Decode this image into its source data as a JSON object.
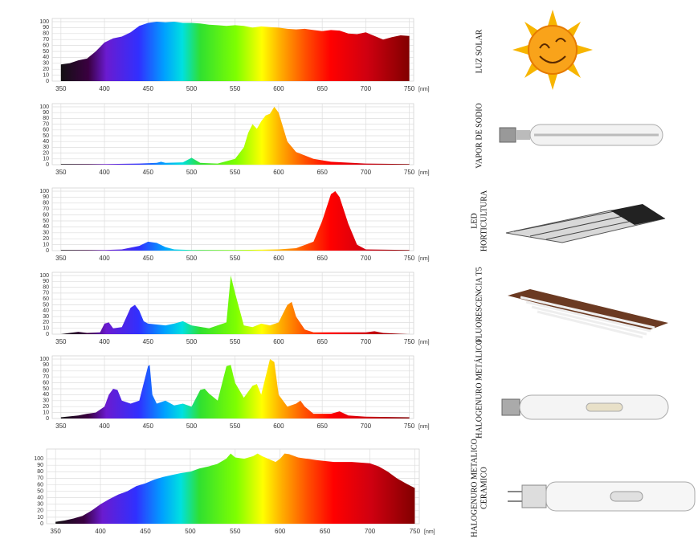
{
  "chart_data": [
    {
      "type": "area",
      "label": [
        "LUZ SOLAR"
      ],
      "x_label": "[nm]",
      "x": [
        350,
        360,
        370,
        380,
        390,
        400,
        410,
        420,
        430,
        440,
        450,
        460,
        470,
        480,
        490,
        500,
        510,
        520,
        530,
        540,
        550,
        560,
        570,
        580,
        590,
        600,
        610,
        620,
        630,
        640,
        650,
        660,
        670,
        680,
        690,
        700,
        710,
        720,
        730,
        740,
        750
      ],
      "values": [
        28,
        30,
        35,
        38,
        50,
        65,
        72,
        75,
        82,
        93,
        98,
        100,
        99,
        100,
        98,
        98,
        97,
        95,
        94,
        93,
        94,
        93,
        90,
        92,
        91,
        90,
        88,
        87,
        88,
        86,
        84,
        86,
        85,
        80,
        79,
        82,
        76,
        70,
        74,
        77,
        76
      ],
      "xlim": [
        340,
        755
      ],
      "xticks": [
        350,
        400,
        450,
        500,
        550,
        600,
        650,
        700,
        750
      ],
      "ylim": [
        0,
        100
      ],
      "yticks": [
        0,
        10,
        20,
        30,
        40,
        50,
        60,
        70,
        80,
        90,
        100
      ],
      "grid": true
    },
    {
      "type": "area",
      "label": [
        "VAPOR DE SODIO"
      ],
      "x_label": "[nm]",
      "x": [
        350,
        400,
        440,
        460,
        465,
        470,
        490,
        500,
        510,
        530,
        550,
        560,
        565,
        570,
        575,
        580,
        585,
        590,
        595,
        600,
        610,
        620,
        640,
        660,
        700,
        750
      ],
      "values": [
        1,
        1,
        2,
        3,
        5,
        3,
        4,
        12,
        3,
        2,
        10,
        30,
        55,
        70,
        62,
        75,
        85,
        88,
        100,
        90,
        40,
        22,
        10,
        5,
        2,
        1
      ],
      "xlim": [
        340,
        755
      ],
      "xticks": [
        350,
        400,
        450,
        500,
        550,
        600,
        650,
        700,
        750
      ],
      "ylim": [
        0,
        100
      ],
      "yticks": [
        0,
        10,
        20,
        30,
        40,
        50,
        60,
        70,
        80,
        90,
        100
      ],
      "grid": true
    },
    {
      "type": "area",
      "label": [
        "LED",
        "HORTICULTURA"
      ],
      "x_label": "[nm]",
      "x": [
        350,
        400,
        420,
        440,
        450,
        460,
        470,
        480,
        500,
        550,
        600,
        620,
        640,
        650,
        660,
        665,
        670,
        680,
        690,
        700,
        750
      ],
      "values": [
        1,
        1,
        2,
        8,
        15,
        13,
        6,
        2,
        1,
        1,
        2,
        4,
        15,
        50,
        95,
        100,
        90,
        45,
        10,
        2,
        1
      ],
      "xlim": [
        340,
        755
      ],
      "xticks": [
        350,
        400,
        450,
        500,
        550,
        600,
        650,
        700,
        750
      ],
      "ylim": [
        0,
        100
      ],
      "yticks": [
        0,
        10,
        20,
        30,
        40,
        50,
        60,
        70,
        80,
        90,
        100
      ],
      "grid": true
    },
    {
      "type": "area",
      "label": [
        "FLUORESCENCIA T5"
      ],
      "x_label": "[nm]",
      "x": [
        350,
        360,
        370,
        380,
        395,
        400,
        405,
        410,
        420,
        430,
        435,
        440,
        445,
        450,
        470,
        480,
        490,
        500,
        520,
        540,
        545,
        550,
        560,
        570,
        580,
        590,
        600,
        605,
        610,
        615,
        620,
        630,
        640,
        700,
        710,
        720,
        750
      ],
      "values": [
        0,
        2,
        4,
        2,
        3,
        18,
        20,
        10,
        12,
        45,
        50,
        40,
        22,
        18,
        15,
        18,
        22,
        15,
        10,
        20,
        100,
        70,
        15,
        12,
        18,
        15,
        20,
        35,
        50,
        55,
        30,
        8,
        3,
        3,
        5,
        2,
        0
      ],
      "xlim": [
        340,
        755
      ],
      "xticks": [
        350,
        400,
        450,
        500,
        550,
        600,
        650,
        700,
        750
      ],
      "ylim": [
        0,
        100
      ],
      "yticks": [
        0,
        10,
        20,
        30,
        40,
        50,
        60,
        70,
        80,
        90,
        100
      ],
      "grid": true
    },
    {
      "type": "area",
      "label": [
        "HALOGENURO METÁLICO"
      ],
      "x_label": "[nm]",
      "x": [
        350,
        370,
        380,
        390,
        400,
        405,
        410,
        415,
        420,
        430,
        440,
        450,
        452,
        455,
        460,
        470,
        480,
        490,
        500,
        510,
        515,
        520,
        530,
        540,
        545,
        550,
        560,
        570,
        575,
        580,
        590,
        595,
        600,
        610,
        620,
        625,
        630,
        640,
        660,
        670,
        680,
        700,
        750
      ],
      "values": [
        2,
        5,
        8,
        10,
        20,
        40,
        50,
        48,
        30,
        25,
        30,
        88,
        90,
        40,
        25,
        30,
        22,
        25,
        20,
        48,
        50,
        42,
        30,
        88,
        90,
        60,
        35,
        55,
        58,
        40,
        100,
        95,
        40,
        20,
        25,
        30,
        20,
        8,
        8,
        12,
        5,
        3,
        2
      ],
      "xlim": [
        340,
        755
      ],
      "xticks": [
        350,
        400,
        450,
        500,
        550,
        600,
        650,
        700,
        750
      ],
      "ylim": [
        0,
        100
      ],
      "yticks": [
        0,
        10,
        20,
        30,
        40,
        50,
        60,
        70,
        80,
        90,
        100
      ],
      "grid": true
    },
    {
      "type": "area",
      "label": [
        "HALOGENURO METALICO",
        "CERAMICO"
      ],
      "x_label": "[nm]",
      "x": [
        350,
        360,
        370,
        380,
        390,
        400,
        410,
        420,
        430,
        440,
        450,
        460,
        470,
        480,
        490,
        500,
        510,
        520,
        530,
        540,
        545,
        550,
        560,
        570,
        575,
        580,
        590,
        595,
        600,
        605,
        610,
        620,
        640,
        660,
        680,
        700,
        710,
        720,
        730,
        740,
        750
      ],
      "values": [
        3,
        5,
        8,
        12,
        20,
        30,
        38,
        45,
        50,
        58,
        62,
        68,
        72,
        75,
        78,
        80,
        85,
        88,
        92,
        100,
        108,
        102,
        100,
        104,
        108,
        104,
        98,
        95,
        100,
        108,
        107,
        102,
        98,
        95,
        95,
        93,
        88,
        80,
        70,
        62,
        55
      ],
      "xlim": [
        340,
        755
      ],
      "xticks": [
        350,
        400,
        450,
        500,
        550,
        600,
        650,
        700,
        750
      ],
      "ylim": [
        0,
        110
      ],
      "yticks": [
        0,
        10,
        20,
        30,
        40,
        50,
        60,
        70,
        80,
        90,
        100
      ],
      "grid": true
    }
  ]
}
